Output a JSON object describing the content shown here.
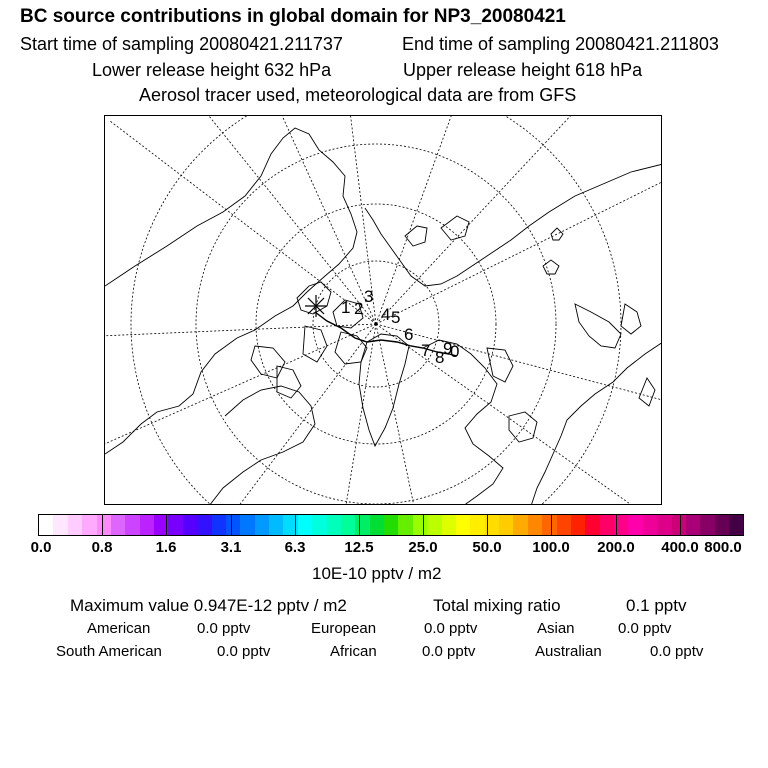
{
  "header": {
    "title": "BC  source contributions in global domain for NP3_20080421",
    "start_time": "Start time of sampling 20080421.211737",
    "end_time": "End time of sampling 20080421.211803",
    "lower_height": "Lower release height  632 hPa",
    "upper_height": "Upper release height  618 hPa",
    "tracer_info": "Aerosol tracer used, meteorological data are from GFS"
  },
  "map": {
    "trajectory_labels": [
      "1",
      "2",
      "3",
      "4",
      "5",
      "6",
      "7",
      "8",
      "9",
      "0"
    ],
    "release_marker": "asterisk"
  },
  "colorbar": {
    "colors": [
      "#ffffff",
      "#ffe8ff",
      "#ffccff",
      "#ffaaff",
      "#ff88ff",
      "#dd66ff",
      "#cc44ff",
      "#bb22ff",
      "#9900ff",
      "#7700ff",
      "#5500ff",
      "#3311ff",
      "#1133ff",
      "#0055ff",
      "#0077ff",
      "#0099ff",
      "#00bbff",
      "#00ddff",
      "#00ffff",
      "#00ffdd",
      "#00ffbb",
      "#00ff99",
      "#00ee66",
      "#00dd33",
      "#22dd00",
      "#66ee00",
      "#99ff00",
      "#bbff00",
      "#ddff00",
      "#ffff00",
      "#ffee00",
      "#ffdd00",
      "#ffcc00",
      "#ffaa00",
      "#ff8800",
      "#ff6600",
      "#ff4400",
      "#ff2200",
      "#ff0033",
      "#ff0066",
      "#ff0088",
      "#ff00aa",
      "#ee0099",
      "#dd0088",
      "#cc0077",
      "#aa0077",
      "#880066",
      "#660055",
      "#440044"
    ],
    "tick_labels": [
      "0.0",
      "0.8",
      "1.6",
      "3.1",
      "6.3",
      "12.5",
      "25.0",
      "50.0",
      "100.0",
      "200.0",
      "400.0",
      "800.0"
    ],
    "units": "10E-10 pptv / m2"
  },
  "stats": {
    "maximum": "Maximum value  0.947E-12 pptv / m2",
    "total": "Total mixing ratio",
    "total_value": "0.1 pptv"
  },
  "regions": [
    {
      "name": "American",
      "value": "0.0 pptv"
    },
    {
      "name": "European",
      "value": "0.0 pptv"
    },
    {
      "name": "Asian",
      "value": "0.0 pptv"
    },
    {
      "name": "South American",
      "value": "0.0 pptv"
    },
    {
      "name": "African",
      "value": "0.0 pptv"
    },
    {
      "name": "Australian",
      "value": "0.0 pptv"
    }
  ]
}
